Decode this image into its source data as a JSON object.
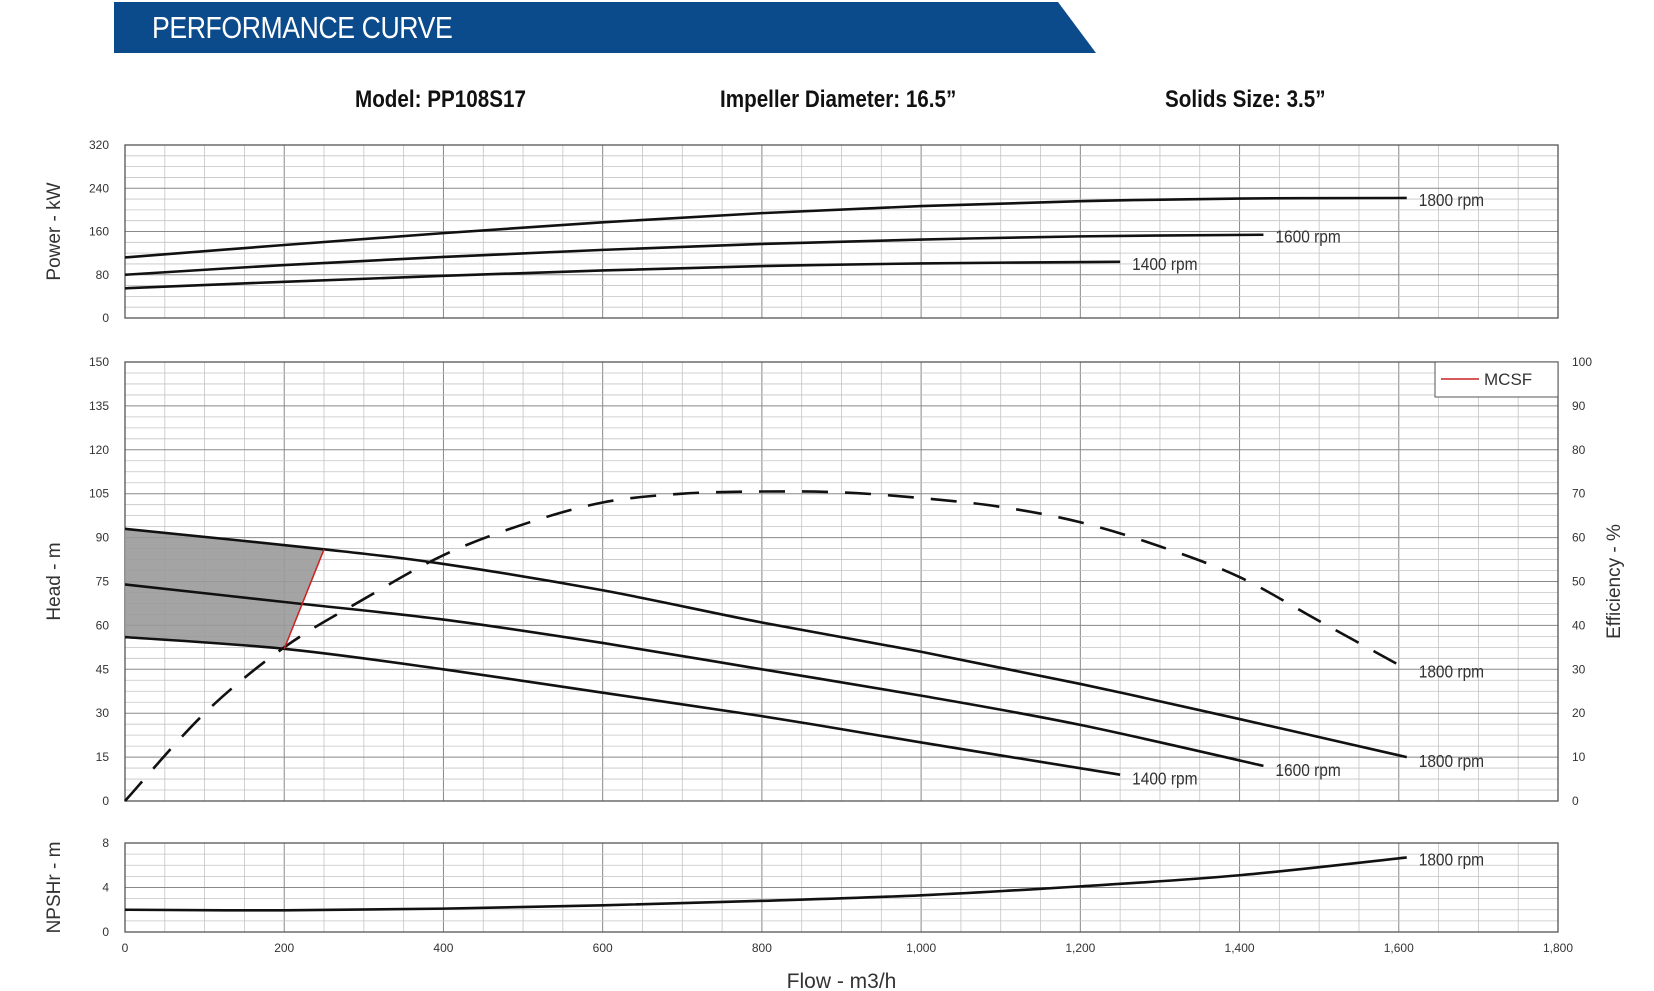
{
  "header": {
    "title": "PERFORMANCE CURVE",
    "accent": "#0b4a8b"
  },
  "specs": {
    "model": "Model: PP108S17",
    "impeller": "Impeller Diameter: 16.5”",
    "solids": "Solids Size: 3.5”"
  },
  "chart_data": [
    {
      "type": "line",
      "panel": "power",
      "ylabel": "Power - kW",
      "ylim": [
        0,
        320
      ],
      "yticks": [
        "0",
        "80",
        "160",
        "240",
        "320"
      ],
      "xlim": [
        0,
        1800
      ],
      "grid": true,
      "series": [
        {
          "name": "1800 rpm",
          "x": [
            0,
            200,
            400,
            600,
            800,
            1000,
            1200,
            1400,
            1610
          ],
          "y": [
            112,
            135,
            157,
            177,
            194,
            207,
            216,
            221,
            222
          ]
        },
        {
          "name": "1600 rpm",
          "x": [
            0,
            200,
            400,
            600,
            800,
            1000,
            1200,
            1430
          ],
          "y": [
            80,
            98,
            113,
            126,
            137,
            145,
            151,
            154
          ]
        },
        {
          "name": "1400 rpm",
          "x": [
            0,
            200,
            400,
            600,
            800,
            1000,
            1250
          ],
          "y": [
            55,
            67,
            78,
            88,
            96,
            101,
            104
          ]
        }
      ]
    },
    {
      "type": "line",
      "panel": "head",
      "ylabel": "Head - m",
      "y2label": "Efficiency - %",
      "ylim": [
        0,
        150
      ],
      "y2lim": [
        0,
        100
      ],
      "yticks": [
        "0",
        "15",
        "30",
        "45",
        "60",
        "75",
        "90",
        "105",
        "120",
        "135",
        "150"
      ],
      "y2ticks": [
        "0",
        "10",
        "20",
        "30",
        "40",
        "50",
        "60",
        "70",
        "80",
        "90",
        "100"
      ],
      "xlim": [
        0,
        1800
      ],
      "grid": true,
      "legend": {
        "position": "top-right",
        "label": "MCSF",
        "color": "#cc2222"
      },
      "series": [
        {
          "name": "1800 rpm",
          "x": [
            0,
            250,
            400,
            600,
            800,
            1000,
            1200,
            1400,
            1610
          ],
          "y": [
            93,
            86,
            81,
            72,
            61,
            51,
            40,
            28,
            15
          ]
        },
        {
          "name": "1600 rpm",
          "x": [
            0,
            200,
            400,
            600,
            800,
            1000,
            1200,
            1430
          ],
          "y": [
            74,
            68,
            62,
            54,
            45,
            36,
            26,
            12
          ]
        },
        {
          "name": "1400 rpm",
          "x": [
            0,
            200,
            400,
            600,
            800,
            1000,
            1250
          ],
          "y": [
            56,
            52,
            45,
            37,
            29,
            20,
            9
          ]
        },
        {
          "name": "1800 rpm",
          "axis": "efficiency",
          "dashed": true,
          "x": [
            0,
            100,
            200,
            300,
            400,
            500,
            600,
            700,
            800,
            900,
            1000,
            1100,
            1200,
            1300,
            1400,
            1500,
            1610
          ],
          "y": [
            0,
            20,
            35,
            46,
            56,
            63,
            68,
            70,
            70.5,
            70.3,
            69,
            67,
            63.5,
            58,
            51,
            41,
            30
          ]
        },
        {
          "name": "MCSF",
          "x": [
            200,
            250
          ],
          "y": [
            52,
            86
          ],
          "color": "#cc2222"
        }
      ],
      "shaded_region": {
        "x_end": [
          250,
          200
        ],
        "color": "#9a9a9a"
      }
    },
    {
      "type": "line",
      "panel": "npsh",
      "ylabel": "NPSHr - m",
      "xlabel": "Flow - m3/h",
      "ylim": [
        0,
        8
      ],
      "yticks": [
        "0",
        "4",
        "8"
      ],
      "xlim": [
        0,
        1800
      ],
      "xticks": [
        "0",
        "200",
        "400",
        "600",
        "800",
        "1,000",
        "1,200",
        "1,400",
        "1,600",
        "1,800"
      ],
      "grid": true,
      "series": [
        {
          "name": "1800 rpm",
          "x": [
            0,
            200,
            400,
            600,
            800,
            1000,
            1200,
            1400,
            1610
          ],
          "y": [
            2.0,
            1.95,
            2.1,
            2.4,
            2.8,
            3.3,
            4.1,
            5.1,
            6.7
          ]
        }
      ]
    }
  ]
}
